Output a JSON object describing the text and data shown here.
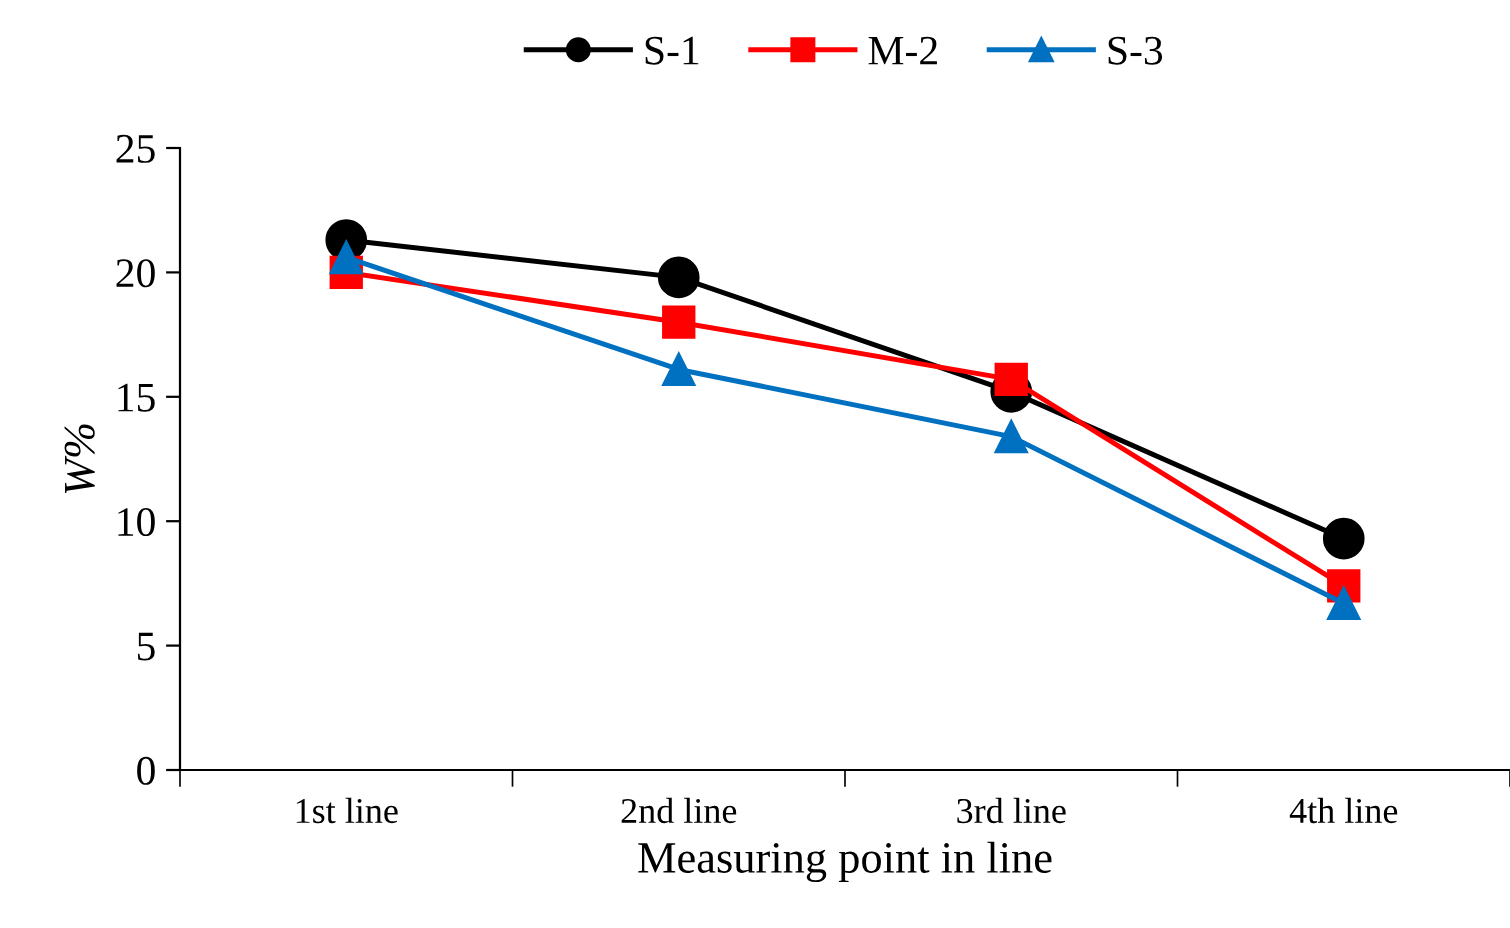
{
  "chart_data": {
    "type": "line",
    "xlabel": "Measuring point in line",
    "ylabel": "W%",
    "categories": [
      "1st line",
      "2nd line",
      "3rd line",
      "4th line"
    ],
    "series": [
      {
        "name": "S-1",
        "color": "#000000",
        "marker": "circle",
        "values": [
          21.3,
          19.8,
          15.2,
          9.3
        ]
      },
      {
        "name": "M-2",
        "color": "#ff0000",
        "marker": "square",
        "values": [
          20.0,
          18.0,
          15.7,
          7.4
        ]
      },
      {
        "name": "S-3",
        "color": "#0070c0",
        "marker": "triangle",
        "values": [
          20.6,
          16.1,
          13.4,
          6.7
        ]
      }
    ],
    "ylim": [
      0,
      25
    ],
    "yticks": [
      0,
      5,
      10,
      15,
      20,
      25
    ],
    "grid": false,
    "legend": "top",
    "line_style": "solid"
  }
}
